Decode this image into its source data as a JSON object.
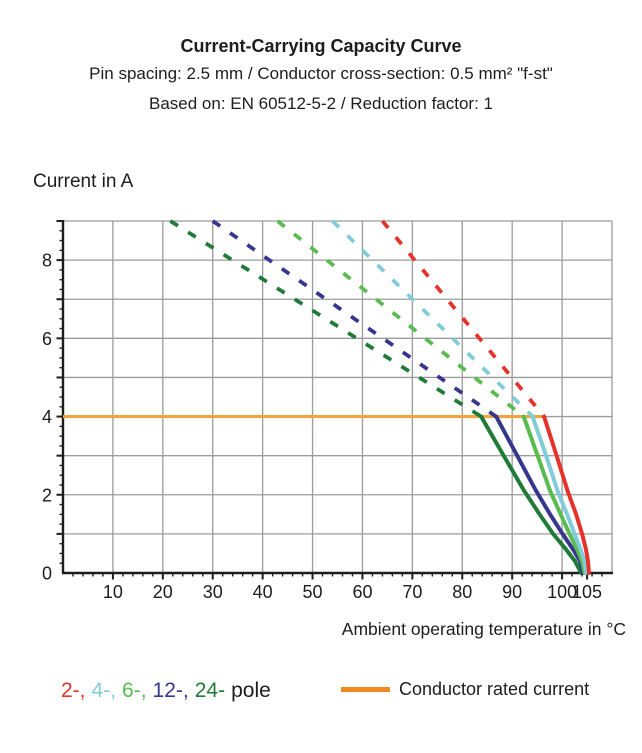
{
  "header": {
    "title": "Current-Carrying Capacity Curve",
    "subtitle1": "Pin spacing: 2.5 mm / Conductor cross-section: 0.5 mm² \"f-st\"",
    "subtitle2": "Based on: EN 60512-5-2 / Reduction factor: 1"
  },
  "chart_data": {
    "type": "line",
    "title": "Current-Carrying Capacity Curve",
    "xlabel": "Ambient operating temperature in °C",
    "ylabel": "Current in A",
    "xlim": [
      0,
      110
    ],
    "ylim": [
      0,
      9
    ],
    "x_gridline_step": 10,
    "y_gridline_step": 1,
    "x_minor_tick_step": 2,
    "y_minor_tick_step": 0.25,
    "x_labeled_ticks": [
      10,
      20,
      30,
      40,
      50,
      60,
      70,
      80,
      90,
      100,
      105
    ],
    "y_labeled_ticks": [
      0,
      2,
      4,
      6,
      8
    ],
    "grid_on": true,
    "grid_color": "#9b9b9b",
    "axis_color": "#1d1d1b",
    "legend_position": "bottom",
    "rated_current": {
      "value": 4,
      "x_start": 0,
      "x_end": 96.4,
      "line_color": "#F2A53F",
      "legend_color": "#EE8A1F",
      "label": "Conductor rated current"
    },
    "series": [
      {
        "name": "24-pole",
        "color": "#207A38",
        "dashed_segment": {
          "from": [
            21.5,
            9
          ],
          "to": [
            83.8,
            4
          ]
        },
        "solid_points": [
          [
            83.8,
            4
          ],
          [
            88.3,
            3
          ],
          [
            92.4,
            2.1
          ],
          [
            95.5,
            1.5
          ],
          [
            98.2,
            1.0
          ],
          [
            100.8,
            0.6
          ],
          [
            102.6,
            0.3
          ],
          [
            103.8,
            0
          ]
        ]
      },
      {
        "name": "12-pole",
        "color": "#37368F",
        "dashed_segment": {
          "from": [
            30,
            9
          ],
          "to": [
            86.8,
            4
          ]
        },
        "solid_points": [
          [
            86.8,
            4
          ],
          [
            91.0,
            3
          ],
          [
            94.8,
            2.1
          ],
          [
            97.6,
            1.5
          ],
          [
            100.1,
            1.0
          ],
          [
            102.2,
            0.6
          ],
          [
            103.6,
            0.3
          ],
          [
            104.2,
            0
          ]
        ]
      },
      {
        "name": "6-pole",
        "color": "#5ABB4F",
        "dashed_segment": {
          "from": [
            43,
            9
          ],
          "to": [
            92.3,
            4
          ]
        },
        "solid_points": [
          [
            92.3,
            4
          ],
          [
            95.1,
            3
          ],
          [
            97.6,
            2.1
          ],
          [
            99.7,
            1.5
          ],
          [
            101.5,
            1.0
          ],
          [
            103.0,
            0.6
          ],
          [
            104.0,
            0.3
          ],
          [
            104.5,
            0
          ]
        ]
      },
      {
        "name": "4-pole",
        "color": "#82CBD9",
        "dashed_segment": {
          "from": [
            54,
            9
          ],
          "to": [
            94.1,
            4
          ]
        },
        "solid_points": [
          [
            94.1,
            4
          ],
          [
            96.8,
            3
          ],
          [
            99.1,
            2.1
          ],
          [
            101.0,
            1.5
          ],
          [
            102.5,
            1.0
          ],
          [
            103.7,
            0.6
          ],
          [
            104.5,
            0.3
          ],
          [
            104.8,
            0
          ]
        ]
      },
      {
        "name": "2-pole",
        "color": "#E5332A",
        "dashed_segment": {
          "from": [
            64,
            9
          ],
          "to": [
            96.4,
            4
          ]
        },
        "solid_points": [
          [
            96.4,
            4
          ],
          [
            98.9,
            3
          ],
          [
            101.1,
            2.1
          ],
          [
            102.8,
            1.5
          ],
          [
            104.0,
            1.0
          ],
          [
            104.8,
            0.6
          ],
          [
            105.2,
            0.3
          ],
          [
            105.4,
            0
          ]
        ]
      }
    ]
  },
  "legend": {
    "pole_tokens": [
      {
        "text": "2-,",
        "color": "#E5332A"
      },
      {
        "text": "4-,",
        "color": "#82CBD9"
      },
      {
        "text": "6-,",
        "color": "#5ABB4F"
      },
      {
        "text": "12-,",
        "color": "#37368F"
      },
      {
        "text": "24-",
        "color": "#207A38"
      },
      {
        "text": "pole",
        "color": "#1d1d1b"
      }
    ],
    "rated_label": "Conductor rated current"
  }
}
